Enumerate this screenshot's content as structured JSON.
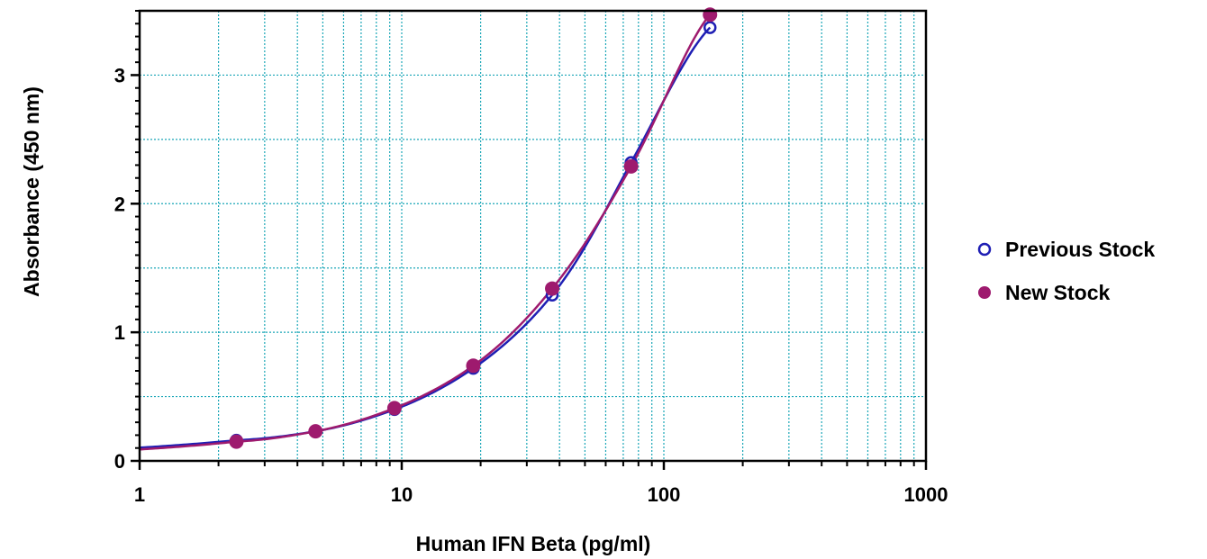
{
  "chart_data": {
    "type": "scatter",
    "title": "",
    "xlabel": "Human IFN Beta (pg/ml)",
    "ylabel": "Absorbance (450 nm)",
    "xscale": "log",
    "xlim": [
      1,
      1000
    ],
    "ylim": [
      0,
      3.5
    ],
    "x_ticks": [
      1,
      10,
      100,
      1000
    ],
    "x_tick_labels": [
      "1",
      "10",
      "100",
      "1000"
    ],
    "y_ticks": [
      0,
      1,
      2,
      3
    ],
    "y_tick_labels": [
      "0",
      "1",
      "2",
      "3"
    ],
    "grid": true,
    "grid_color": "#1aa6b7",
    "legend_position": "right",
    "series": [
      {
        "name": "Previous Stock",
        "color": "#1f1fb4",
        "marker": "open-circle",
        "x": [
          2.34,
          4.69,
          9.38,
          18.75,
          37.5,
          75,
          150
        ],
        "y": [
          0.16,
          0.23,
          0.4,
          0.72,
          1.29,
          2.32,
          3.37
        ],
        "fit_curve": true
      },
      {
        "name": "New Stock",
        "color": "#9e1a6e",
        "marker": "filled-circle",
        "x": [
          2.34,
          4.69,
          9.38,
          18.75,
          37.5,
          75,
          150
        ],
        "y": [
          0.15,
          0.23,
          0.41,
          0.74,
          1.34,
          2.29,
          3.47
        ],
        "fit_curve": true
      }
    ]
  }
}
